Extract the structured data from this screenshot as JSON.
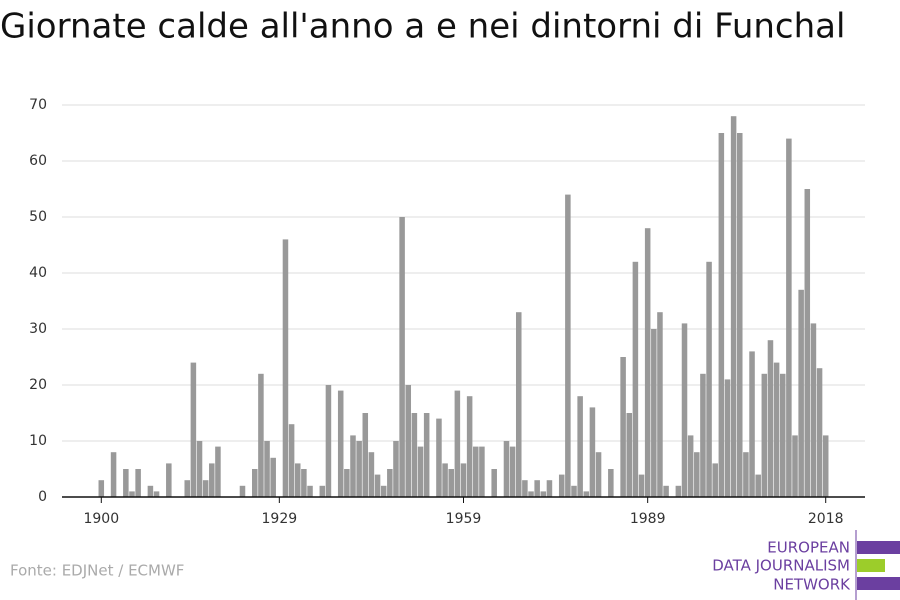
{
  "chart_data": {
    "type": "bar",
    "title": "Giornate calde all'anno a e nei dintorni di Funchal",
    "source": "Fonte: EDJNet / ECMWF",
    "logo": [
      "EUROPEAN",
      "DATA JOURNALISM",
      "NETWORK"
    ],
    "color": "#999999",
    "x": [
      1900,
      1901,
      1902,
      1903,
      1904,
      1905,
      1906,
      1907,
      1908,
      1909,
      1910,
      1911,
      1912,
      1913,
      1914,
      1915,
      1916,
      1917,
      1918,
      1919,
      1920,
      1921,
      1922,
      1923,
      1924,
      1925,
      1926,
      1927,
      1928,
      1929,
      1930,
      1931,
      1932,
      1933,
      1934,
      1935,
      1936,
      1937,
      1938,
      1939,
      1940,
      1941,
      1942,
      1943,
      1944,
      1945,
      1946,
      1947,
      1948,
      1949,
      1950,
      1951,
      1952,
      1953,
      1954,
      1955,
      1956,
      1957,
      1958,
      1959,
      1960,
      1961,
      1962,
      1963,
      1964,
      1965,
      1966,
      1967,
      1968,
      1969,
      1970,
      1971,
      1972,
      1973,
      1974,
      1975,
      1976,
      1977,
      1978,
      1979,
      1980,
      1981,
      1982,
      1983,
      1984,
      1985,
      1986,
      1987,
      1988,
      1989,
      1990,
      1991,
      1992,
      1993,
      1994,
      1995,
      1996,
      1997,
      1998,
      1999,
      2000,
      2001,
      2002,
      2003,
      2004,
      2005,
      2006,
      2007,
      2008,
      2009,
      2010,
      2011,
      2012,
      2013,
      2014,
      2015,
      2016,
      2017,
      2018
    ],
    "values": [
      3,
      0,
      8,
      0,
      5,
      1,
      5,
      0,
      2,
      1,
      0,
      6,
      0,
      0,
      3,
      24,
      10,
      3,
      6,
      9,
      0,
      0,
      0,
      2,
      0,
      5,
      22,
      10,
      7,
      0,
      46,
      13,
      6,
      5,
      2,
      0,
      2,
      20,
      0,
      19,
      5,
      11,
      10,
      15,
      8,
      4,
      2,
      5,
      10,
      50,
      20,
      15,
      9,
      15,
      0,
      14,
      6,
      5,
      19,
      6,
      18,
      9,
      9,
      0,
      5,
      0,
      10,
      9,
      33,
      3,
      1,
      3,
      1,
      3,
      0,
      4,
      54,
      2,
      18,
      1,
      16,
      8,
      0,
      5,
      0,
      25,
      15,
      42,
      4,
      48,
      30,
      33,
      2,
      0,
      2,
      31,
      11,
      8,
      22,
      42,
      6,
      65,
      21,
      68,
      65,
      8,
      26,
      4,
      22,
      28,
      24,
      22,
      64,
      11,
      37,
      55,
      31,
      23,
      11
    ],
    "xlim": [
      1893.6,
      2024.4
    ],
    "xticks": [
      1900,
      1929,
      1959,
      1989,
      2018
    ],
    "ylim": [
      0,
      70
    ],
    "yticks": [
      0,
      10,
      20,
      30,
      40,
      50,
      60,
      70
    ],
    "grid": true
  }
}
